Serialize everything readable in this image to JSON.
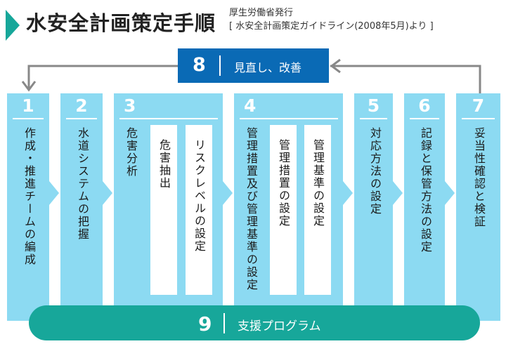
{
  "header": {
    "title": "水安全計画策定手順",
    "source_line1": "厚生労働省発行",
    "source_line2": "[ 水安全計画策定ガイドライン(2008年5月)より ]"
  },
  "feedback": {
    "number": "8",
    "label": "見直し、改善"
  },
  "support": {
    "number": "9",
    "label": "支援プログラム"
  },
  "steps": [
    {
      "number": "1",
      "label": "作成・推進チームの編成"
    },
    {
      "number": "2",
      "label": "水道システムの把握"
    },
    {
      "number": "3",
      "label": "危害分析",
      "sub": [
        "危害抽出",
        "リスクレベルの設定"
      ]
    },
    {
      "number": "4",
      "label": "管理措置及び管理基準の設定",
      "sub": [
        "管理措置の設定",
        "管理基準の設定"
      ]
    },
    {
      "number": "5",
      "label": "対応方法の設定"
    },
    {
      "number": "6",
      "label": "記録と保管方法の設定"
    },
    {
      "number": "7",
      "label": "妥当性確認と検証"
    }
  ],
  "colors": {
    "step_fill": "#8cdaf2",
    "feedback_fill": "#0a6ab5",
    "support_fill": "#17a79a",
    "arrow": "#888888"
  }
}
